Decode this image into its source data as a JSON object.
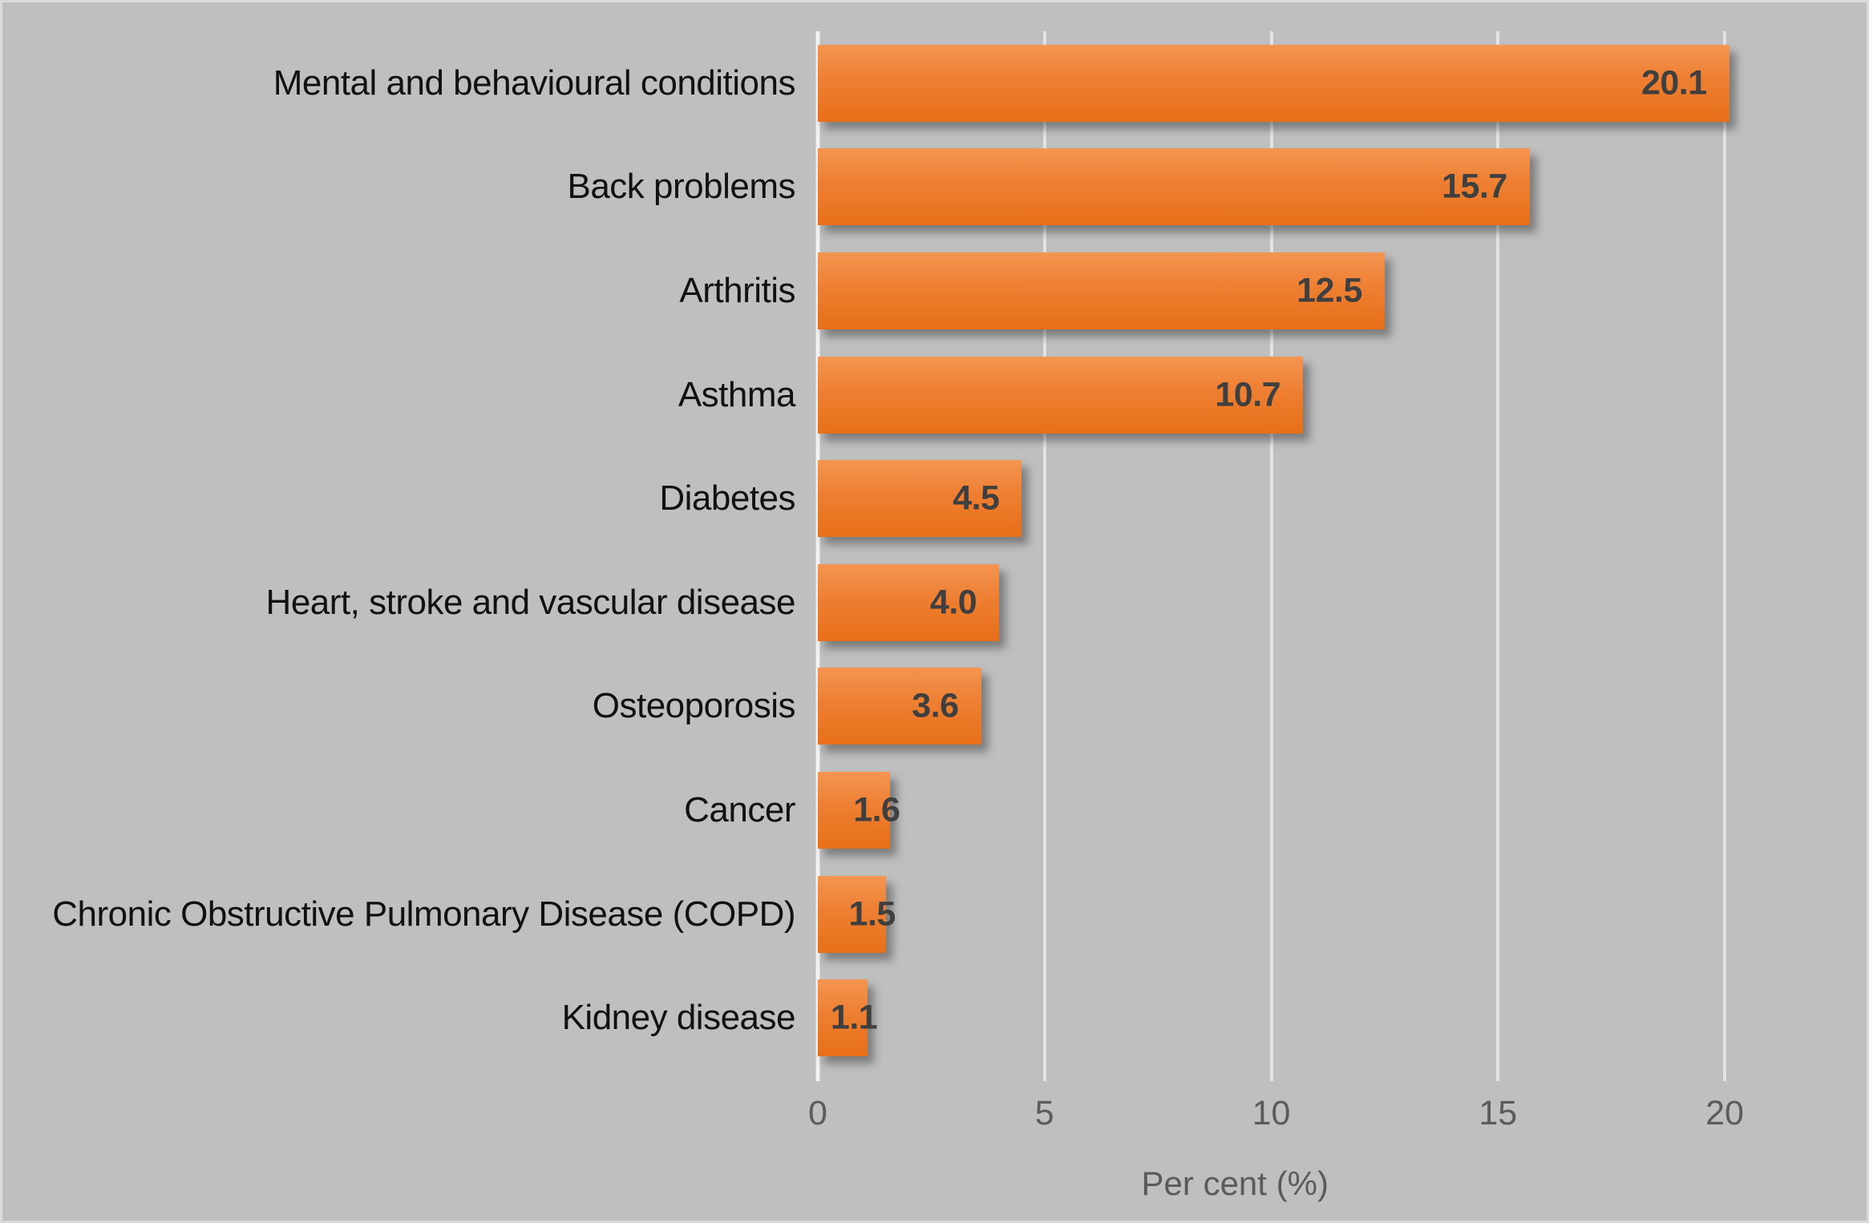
{
  "chart_data": {
    "type": "bar",
    "orientation": "horizontal",
    "title": "",
    "categories": [
      "Mental and behavioural conditions",
      "Back problems",
      "Arthritis",
      "Asthma",
      "Diabetes",
      "Heart, stroke and vascular disease",
      "Osteoporosis",
      "Cancer",
      "Chronic Obstructive Pulmonary Disease (COPD)",
      "Kidney disease"
    ],
    "values": [
      20.1,
      15.7,
      12.5,
      10.7,
      4.5,
      4.0,
      3.6,
      1.6,
      1.5,
      1.1
    ],
    "value_labels": [
      "20.1",
      "15.7",
      "12.5",
      "10.7",
      "4.5",
      "4.0",
      "3.6",
      "1.6",
      "1.5",
      "1.1"
    ],
    "xlabel": "Per cent (%)",
    "xlim": [
      0,
      20
    ],
    "xticks": [
      "0",
      "5",
      "10",
      "15",
      "20"
    ],
    "xtick_values": [
      0,
      5,
      10,
      15,
      20
    ],
    "grid": true,
    "legend": false,
    "colors": {
      "background": "#BFBFBF",
      "border": "#DADADA",
      "bar_top": "#F49551",
      "bar_main": "#ED7D31",
      "bar_bottom": "#E76F17",
      "gridline": "#E3E3E3",
      "axis_line": "#F2F2F2",
      "value_label": "#3F3F3F",
      "category_label": "#111111",
      "tick_label": "#5B5B5B"
    }
  }
}
